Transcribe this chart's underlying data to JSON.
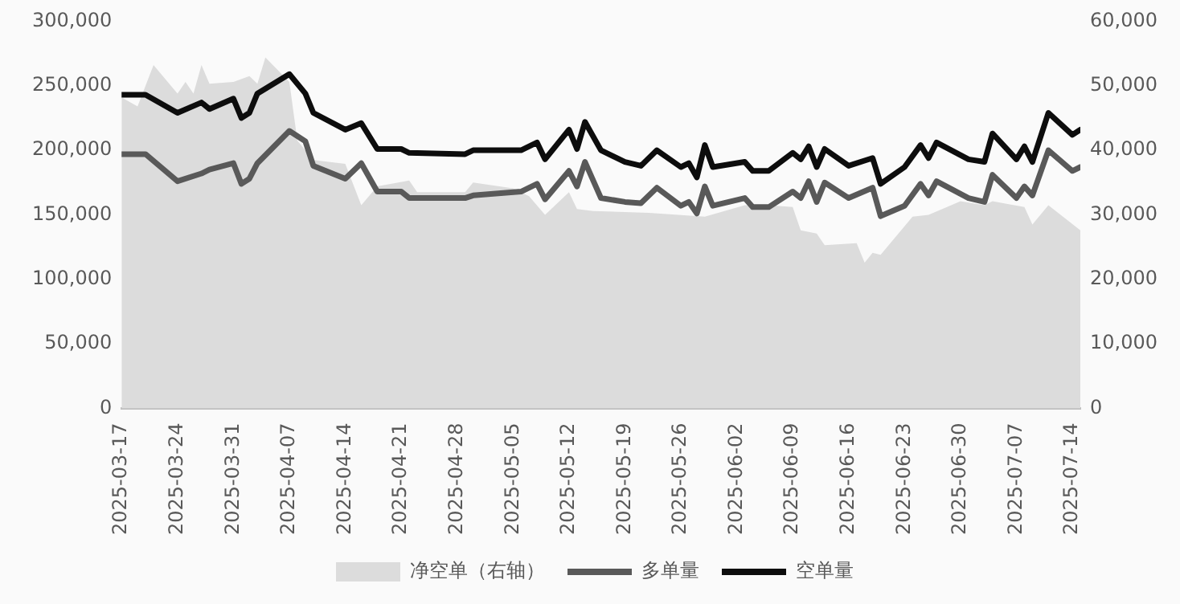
{
  "chart_data": {
    "type": "line",
    "legend": "bottom",
    "grid": false,
    "marker": "none",
    "line_style": "solid",
    "xlim": [
      "2025-03-17",
      "2025-07-15"
    ],
    "xticks": [
      "2025-03-17",
      "2025-03-24",
      "2025-03-31",
      "2025-04-07",
      "2025-04-14",
      "2025-04-21",
      "2025-04-28",
      "2025-05-05",
      "2025-05-12",
      "2025-05-19",
      "2025-05-26",
      "2025-06-02",
      "2025-06-09",
      "2025-06-16",
      "2025-06-23",
      "2025-06-30",
      "2025-07-07",
      "2025-07-14"
    ],
    "ylim": [
      0,
      300000
    ],
    "yticks": [
      0,
      {
        "value": 50000,
        "label": "50,000"
      },
      {
        "value": 100000,
        "label": "100,000"
      },
      {
        "value": 150000,
        "label": "150,000"
      },
      {
        "value": 200000,
        "label": "200,000"
      },
      {
        "value": 250000,
        "label": "250,000"
      },
      {
        "value": 300000,
        "label": "300,000"
      }
    ],
    "y2lim": [
      0,
      60000
    ],
    "y2ticks": [
      0,
      {
        "value": 10000,
        "label": "10,000"
      },
      {
        "value": 20000,
        "label": "20,000"
      },
      {
        "value": 30000,
        "label": "30,000"
      },
      {
        "value": 40000,
        "label": "40,000"
      },
      {
        "value": 50000,
        "label": "50,000"
      },
      {
        "value": 60000,
        "label": "60,000"
      }
    ],
    "series": [
      {
        "name": "净空单（右轴）",
        "type": "area",
        "axis": "y2",
        "color": "#dcdcdc",
        "x": [
          "2025-03-17",
          "2025-03-19",
          "2025-03-21",
          "2025-03-24",
          "2025-03-25",
          "2025-03-26",
          "2025-03-27",
          "2025-03-28",
          "2025-03-31",
          "2025-04-02",
          "2025-04-03",
          "2025-04-04",
          "2025-04-07",
          "2025-04-08",
          "2025-04-10",
          "2025-04-14",
          "2025-04-16",
          "2025-04-18",
          "2025-04-22",
          "2025-04-23",
          "2025-04-28",
          "2025-04-29",
          "2025-04-30",
          "2025-05-05",
          "2025-05-07",
          "2025-05-09",
          "2025-05-12",
          "2025-05-13",
          "2025-05-15",
          "2025-05-22",
          "2025-05-29",
          "2025-06-03",
          "2025-06-06",
          "2025-06-09",
          "2025-06-10",
          "2025-06-12",
          "2025-06-13",
          "2025-06-17",
          "2025-06-18",
          "2025-06-19",
          "2025-06-20",
          "2025-06-24",
          "2025-06-26",
          "2025-06-30",
          "2025-07-03",
          "2025-07-04",
          "2025-07-08",
          "2025-07-09",
          "2025-07-11",
          "2025-07-15"
        ],
        "values": [
          48200,
          46800,
          53200,
          48800,
          50600,
          48800,
          53200,
          50300,
          50600,
          51500,
          50300,
          54400,
          50600,
          41500,
          38500,
          37900,
          31500,
          34400,
          35300,
          33500,
          33500,
          33500,
          35000,
          34100,
          32900,
          30000,
          33500,
          30900,
          30600,
          30300,
          29700,
          31500,
          31500,
          31200,
          27600,
          27100,
          25300,
          25600,
          22600,
          24100,
          23800,
          29700,
          30000,
          32100,
          31500,
          32100,
          31200,
          28500,
          31500,
          27600
        ]
      },
      {
        "name": "多单量",
        "type": "line",
        "color": "#595959",
        "x": [
          "2025-03-17",
          "2025-03-20",
          "2025-03-24",
          "2025-03-27",
          "2025-03-28",
          "2025-03-31",
          "2025-04-01",
          "2025-04-02",
          "2025-04-03",
          "2025-04-07",
          "2025-04-09",
          "2025-04-10",
          "2025-04-14",
          "2025-04-16",
          "2025-04-18",
          "2025-04-21",
          "2025-04-22",
          "2025-04-29",
          "2025-04-30",
          "2025-05-06",
          "2025-05-08",
          "2025-05-09",
          "2025-05-12",
          "2025-05-13",
          "2025-05-14",
          "2025-05-16",
          "2025-05-19",
          "2025-05-21",
          "2025-05-23",
          "2025-05-26",
          "2025-05-27",
          "2025-05-28",
          "2025-05-29",
          "2025-05-30",
          "2025-06-03",
          "2025-06-04",
          "2025-06-06",
          "2025-06-09",
          "2025-06-10",
          "2025-06-11",
          "2025-06-12",
          "2025-06-13",
          "2025-06-16",
          "2025-06-19",
          "2025-06-20",
          "2025-06-23",
          "2025-06-25",
          "2025-06-26",
          "2025-06-27",
          "2025-07-01",
          "2025-07-03",
          "2025-07-04",
          "2025-07-07",
          "2025-07-08",
          "2025-07-09",
          "2025-07-11",
          "2025-07-14",
          "2025-07-15"
        ],
        "values": [
          197000,
          197000,
          176000,
          182000,
          185000,
          190000,
          174000,
          178000,
          190000,
          215000,
          207000,
          188000,
          178000,
          190000,
          168000,
          168000,
          163000,
          163000,
          165000,
          168000,
          174000,
          162000,
          184000,
          172000,
          191000,
          163000,
          160000,
          159000,
          171000,
          157000,
          160000,
          151000,
          172000,
          157000,
          163000,
          156000,
          156000,
          168000,
          163000,
          176000,
          160000,
          175000,
          163000,
          171000,
          149000,
          157000,
          174000,
          165000,
          176000,
          163000,
          160000,
          181000,
          163000,
          172000,
          165000,
          200000,
          184000,
          187000
        ]
      },
      {
        "name": "空单量",
        "type": "line",
        "color": "#0d0d0d",
        "x": [
          "2025-03-17",
          "2025-03-20",
          "2025-03-24",
          "2025-03-27",
          "2025-03-28",
          "2025-03-31",
          "2025-04-01",
          "2025-04-02",
          "2025-04-03",
          "2025-04-07",
          "2025-04-09",
          "2025-04-10",
          "2025-04-14",
          "2025-04-16",
          "2025-04-18",
          "2025-04-21",
          "2025-04-22",
          "2025-04-29",
          "2025-04-30",
          "2025-05-06",
          "2025-05-08",
          "2025-05-09",
          "2025-05-12",
          "2025-05-13",
          "2025-05-14",
          "2025-05-16",
          "2025-05-19",
          "2025-05-21",
          "2025-05-23",
          "2025-05-26",
          "2025-05-27",
          "2025-05-28",
          "2025-05-29",
          "2025-05-30",
          "2025-06-03",
          "2025-06-04",
          "2025-06-06",
          "2025-06-09",
          "2025-06-10",
          "2025-06-11",
          "2025-06-12",
          "2025-06-13",
          "2025-06-16",
          "2025-06-19",
          "2025-06-20",
          "2025-06-23",
          "2025-06-25",
          "2025-06-26",
          "2025-06-27",
          "2025-07-01",
          "2025-07-03",
          "2025-07-04",
          "2025-07-07",
          "2025-07-08",
          "2025-07-09",
          "2025-07-11",
          "2025-07-14",
          "2025-07-15"
        ],
        "values": [
          243000,
          243000,
          229000,
          237000,
          232000,
          240000,
          225000,
          229000,
          244000,
          259000,
          244000,
          229000,
          216000,
          221000,
          201000,
          201000,
          198000,
          197000,
          200000,
          200000,
          206000,
          193000,
          216000,
          201000,
          222000,
          200000,
          191000,
          188000,
          200000,
          187000,
          190000,
          179000,
          204000,
          187000,
          191000,
          184000,
          184000,
          198000,
          193000,
          203000,
          187000,
          201000,
          188000,
          194000,
          174000,
          187000,
          204000,
          194000,
          206000,
          193000,
          191000,
          213000,
          193000,
          203000,
          191000,
          229000,
          212000,
          216000
        ]
      }
    ]
  }
}
